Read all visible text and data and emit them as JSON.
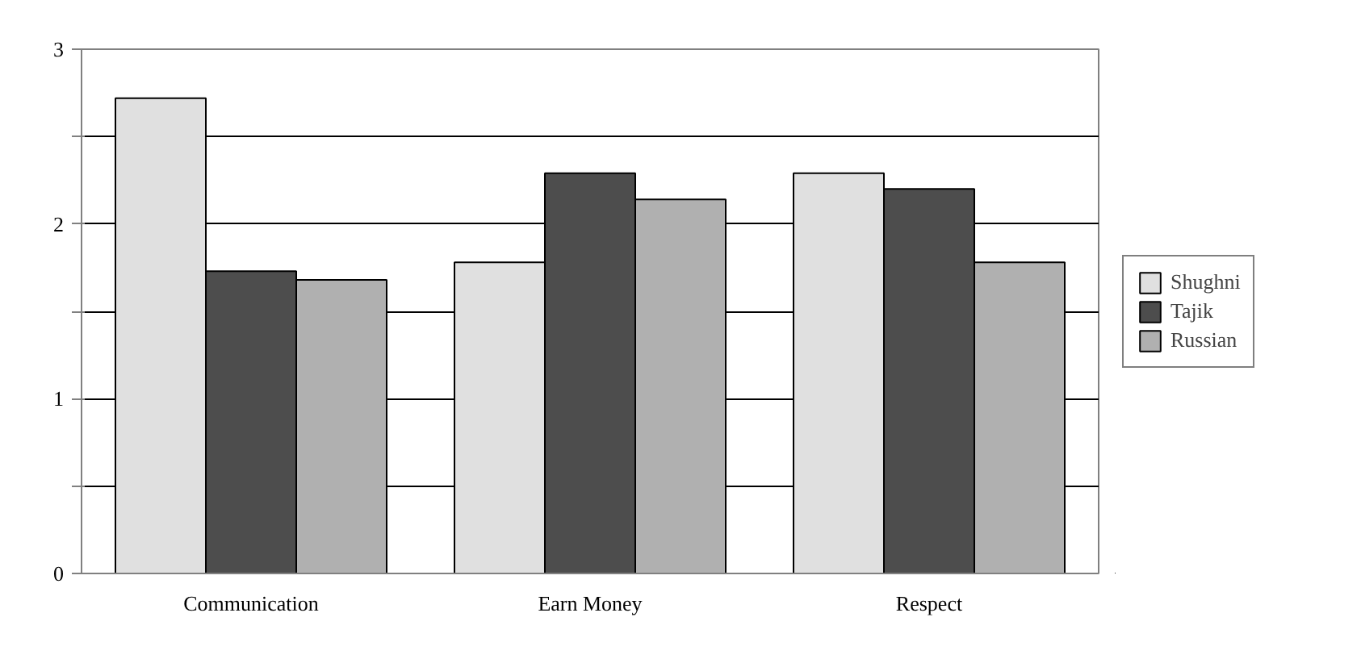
{
  "chart_data": {
    "type": "bar",
    "categories": [
      "Communication",
      "Earn Money",
      "Respect"
    ],
    "series": [
      {
        "name": "Shughni",
        "color": "#e0e0e0",
        "values": [
          2.72,
          1.78,
          2.29
        ]
      },
      {
        "name": "Tajik",
        "color": "#4d4d4d",
        "values": [
          1.73,
          2.29,
          2.2
        ]
      },
      {
        "name": "Russian",
        "color": "#b0b0b0",
        "values": [
          1.68,
          2.14,
          1.78
        ]
      }
    ],
    "ylim": [
      0,
      3
    ],
    "yticks": [
      0,
      {
        "value": 0.5,
        "label": null
      },
      1,
      {
        "value": 1.5,
        "label": null
      },
      2,
      {
        "value": 2.5,
        "label": null
      },
      3
    ],
    "grid": "y",
    "legend": "right"
  }
}
